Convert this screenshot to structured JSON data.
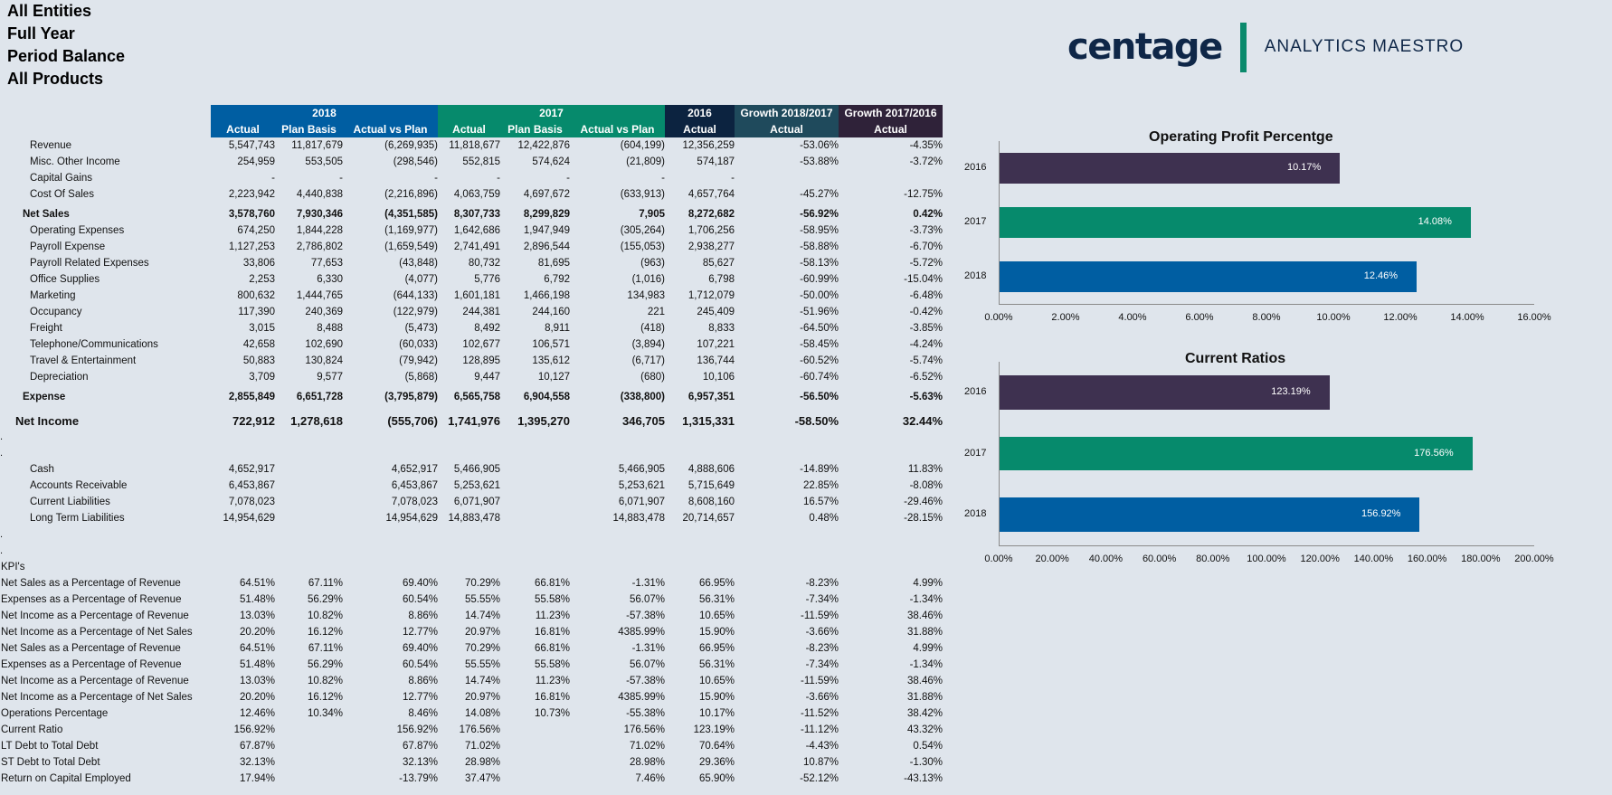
{
  "filters": [
    "All Entities",
    "Full Year",
    "Period Balance",
    "All Products"
  ],
  "brand": {
    "name": "centage",
    "tagline": "ANALYTICS MAESTRO",
    "colors": {
      "navy": "#0f2748",
      "green": "#0a8a6c"
    }
  },
  "table": {
    "groups": [
      {
        "label": "2018",
        "color": "#005ea2"
      },
      {
        "label": "2017",
        "color": "#068a6c"
      },
      {
        "label": "2016",
        "color": "#0c2340"
      },
      {
        "label": "Growth 2018/2017",
        "color": "#1f4a5c"
      },
      {
        "label": "Growth 2017/2016",
        "color": "#2f2239"
      }
    ],
    "columns": [
      "Actual",
      "Plan Basis",
      "Actual vs Plan",
      "Actual",
      "Plan Basis",
      "Actual vs Plan",
      "Actual",
      "Actual",
      "Actual"
    ],
    "income_rows": [
      {
        "label": "Revenue",
        "style": "item",
        "values": [
          "5,547,743",
          "11,817,679",
          "(6,269,935)",
          "11,818,677",
          "12,422,876",
          "(604,199)",
          "12,356,259",
          "-53.06%",
          "-4.35%"
        ]
      },
      {
        "label": "Misc. Other Income",
        "style": "item",
        "values": [
          "254,959",
          "553,505",
          "(298,546)",
          "552,815",
          "574,624",
          "(21,809)",
          "574,187",
          "-53.88%",
          "-3.72%"
        ]
      },
      {
        "label": "Capital Gains",
        "style": "item",
        "values": [
          "-",
          "-",
          "-",
          "-",
          "-",
          "-",
          "-",
          "",
          ""
        ]
      },
      {
        "label": "Cost Of Sales",
        "style": "item",
        "values": [
          "2,223,942",
          "4,440,838",
          "(2,216,896)",
          "4,063,759",
          "4,697,672",
          "(633,913)",
          "4,657,764",
          "-45.27%",
          "-12.75%"
        ]
      },
      {
        "label": "Net Sales",
        "style": "subtotal",
        "values": [
          "3,578,760",
          "7,930,346",
          "(4,351,585)",
          "8,307,733",
          "8,299,829",
          "7,905",
          "8,272,682",
          "-56.92%",
          "0.42%"
        ]
      },
      {
        "label": "Operating Expenses",
        "style": "item",
        "values": [
          "674,250",
          "1,844,228",
          "(1,169,977)",
          "1,642,686",
          "1,947,949",
          "(305,264)",
          "1,706,256",
          "-58.95%",
          "-3.73%"
        ]
      },
      {
        "label": "Payroll Expense",
        "style": "item",
        "values": [
          "1,127,253",
          "2,786,802",
          "(1,659,549)",
          "2,741,491",
          "2,896,544",
          "(155,053)",
          "2,938,277",
          "-58.88%",
          "-6.70%"
        ]
      },
      {
        "label": "Payroll Related Expenses",
        "style": "item",
        "values": [
          "33,806",
          "77,653",
          "(43,848)",
          "80,732",
          "81,695",
          "(963)",
          "85,627",
          "-58.13%",
          "-5.72%"
        ]
      },
      {
        "label": "Office Supplies",
        "style": "item",
        "values": [
          "2,253",
          "6,330",
          "(4,077)",
          "5,776",
          "6,792",
          "(1,016)",
          "6,798",
          "-60.99%",
          "-15.04%"
        ]
      },
      {
        "label": "Marketing",
        "style": "item",
        "values": [
          "800,632",
          "1,444,765",
          "(644,133)",
          "1,601,181",
          "1,466,198",
          "134,983",
          "1,712,079",
          "-50.00%",
          "-6.48%"
        ]
      },
      {
        "label": "Occupancy",
        "style": "item",
        "values": [
          "117,390",
          "240,369",
          "(122,979)",
          "244,381",
          "244,160",
          "221",
          "245,409",
          "-51.96%",
          "-0.42%"
        ]
      },
      {
        "label": "Freight",
        "style": "item",
        "values": [
          "3,015",
          "8,488",
          "(5,473)",
          "8,492",
          "8,911",
          "(418)",
          "8,833",
          "-64.50%",
          "-3.85%"
        ]
      },
      {
        "label": "Telephone/Communications",
        "style": "item",
        "values": [
          "42,658",
          "102,690",
          "(60,033)",
          "102,677",
          "106,571",
          "(3,894)",
          "107,221",
          "-58.45%",
          "-4.24%"
        ]
      },
      {
        "label": "Travel & Entertainment",
        "style": "item",
        "values": [
          "50,883",
          "130,824",
          "(79,942)",
          "128,895",
          "135,612",
          "(6,717)",
          "136,744",
          "-60.52%",
          "-5.74%"
        ]
      },
      {
        "label": "Depreciation",
        "style": "item",
        "values": [
          "3,709",
          "9,577",
          "(5,868)",
          "9,447",
          "10,127",
          "(680)",
          "10,106",
          "-60.74%",
          "-6.52%"
        ]
      },
      {
        "label": "Expense",
        "style": "subtotal",
        "values": [
          "2,855,849",
          "6,651,728",
          "(3,795,879)",
          "6,565,758",
          "6,904,558",
          "(338,800)",
          "6,957,351",
          "-56.50%",
          "-5.63%"
        ]
      },
      {
        "label": "Net Income",
        "style": "total",
        "values": [
          "722,912",
          "1,278,618",
          "(555,706)",
          "1,741,976",
          "1,395,270",
          "346,705",
          "1,315,331",
          "-58.50%",
          "32.44%"
        ]
      }
    ],
    "spacer_mark": ".",
    "balance_rows": [
      {
        "label": "Cash",
        "values": [
          "4,652,917",
          "",
          "4,652,917",
          "5,466,905",
          "",
          "5,466,905",
          "4,888,606",
          "-14.89%",
          "11.83%"
        ]
      },
      {
        "label": "Accounts Receivable",
        "values": [
          "6,453,867",
          "",
          "6,453,867",
          "5,253,621",
          "",
          "5,253,621",
          "5,715,649",
          "22.85%",
          "-8.08%"
        ]
      },
      {
        "label": "Current Liabilities",
        "values": [
          "7,078,023",
          "",
          "7,078,023",
          "6,071,907",
          "",
          "6,071,907",
          "8,608,160",
          "16.57%",
          "-29.46%"
        ]
      },
      {
        "label": "Long Term Liabilities",
        "values": [
          "14,954,629",
          "",
          "14,954,629",
          "14,883,478",
          "",
          "14,883,478",
          "20,714,657",
          "0.48%",
          "-28.15%"
        ]
      }
    ],
    "kpi_heading": "KPI's",
    "kpi_rows": [
      {
        "label": "Net Sales as a Percentage of Revenue",
        "values": [
          "64.51%",
          "67.11%",
          "69.40%",
          "70.29%",
          "66.81%",
          "-1.31%",
          "66.95%",
          "-8.23%",
          "4.99%"
        ]
      },
      {
        "label": "Expenses as a Percentage of Revenue",
        "values": [
          "51.48%",
          "56.29%",
          "60.54%",
          "55.55%",
          "55.58%",
          "56.07%",
          "56.31%",
          "-7.34%",
          "-1.34%"
        ]
      },
      {
        "label": "Net Income as a Percentage of Revenue",
        "values": [
          "13.03%",
          "10.82%",
          "8.86%",
          "14.74%",
          "11.23%",
          "-57.38%",
          "10.65%",
          "-11.59%",
          "38.46%"
        ]
      },
      {
        "label": "Net Income as a Percentage of Net Sales",
        "values": [
          "20.20%",
          "16.12%",
          "12.77%",
          "20.97%",
          "16.81%",
          "4385.99%",
          "15.90%",
          "-3.66%",
          "31.88%"
        ]
      },
      {
        "label": "Net Sales as a Percentage of Revenue",
        "values": [
          "64.51%",
          "67.11%",
          "69.40%",
          "70.29%",
          "66.81%",
          "-1.31%",
          "66.95%",
          "-8.23%",
          "4.99%"
        ]
      },
      {
        "label": "Expenses as a Percentage of Revenue",
        "values": [
          "51.48%",
          "56.29%",
          "60.54%",
          "55.55%",
          "55.58%",
          "56.07%",
          "56.31%",
          "-7.34%",
          "-1.34%"
        ]
      },
      {
        "label": "Net Income as a Percentage of Revenue",
        "values": [
          "13.03%",
          "10.82%",
          "8.86%",
          "14.74%",
          "11.23%",
          "-57.38%",
          "10.65%",
          "-11.59%",
          "38.46%"
        ]
      },
      {
        "label": "Net Income as a Percentage of Net Sales",
        "values": [
          "20.20%",
          "16.12%",
          "12.77%",
          "20.97%",
          "16.81%",
          "4385.99%",
          "15.90%",
          "-3.66%",
          "31.88%"
        ]
      },
      {
        "label": "Operations Percentage",
        "values": [
          "12.46%",
          "10.34%",
          "8.46%",
          "14.08%",
          "10.73%",
          "-55.38%",
          "10.17%",
          "-11.52%",
          "38.42%"
        ]
      },
      {
        "label": "Current Ratio",
        "values": [
          "156.92%",
          "",
          "156.92%",
          "176.56%",
          "",
          "176.56%",
          "123.19%",
          "-11.12%",
          "43.32%"
        ]
      },
      {
        "label": "LT Debt to Total Debt",
        "values": [
          "67.87%",
          "",
          "67.87%",
          "71.02%",
          "",
          "71.02%",
          "70.64%",
          "-4.43%",
          "0.54%"
        ]
      },
      {
        "label": "ST Debt to Total Debt",
        "values": [
          "32.13%",
          "",
          "32.13%",
          "28.98%",
          "",
          "28.98%",
          "29.36%",
          "10.87%",
          "-1.30%"
        ]
      },
      {
        "label": "Return on Capital Employed",
        "values": [
          "17.94%",
          "",
          "-13.79%",
          "37.47%",
          "",
          "7.46%",
          "65.90%",
          "-52.12%",
          "-43.13%"
        ]
      }
    ]
  },
  "chart_data": [
    {
      "type": "bar",
      "orientation": "horizontal",
      "title": "Operating Profit Percentge",
      "categories": [
        "2016",
        "2017",
        "2018"
      ],
      "values": [
        10.17,
        14.08,
        12.46
      ],
      "value_labels": [
        "10.17%",
        "14.08%",
        "12.46%"
      ],
      "colors": [
        "#3e3150",
        "#068a6c",
        "#005ea2"
      ],
      "xlim": [
        0,
        16
      ],
      "xticks": [
        0,
        2,
        4,
        6,
        8,
        10,
        12,
        14,
        16
      ],
      "xtick_labels": [
        "0.00%",
        "2.00%",
        "4.00%",
        "6.00%",
        "8.00%",
        "10.00%",
        "12.00%",
        "14.00%",
        "16.00%"
      ],
      "xlabel": "",
      "ylabel": "",
      "grid": false,
      "legend": "none"
    },
    {
      "type": "bar",
      "orientation": "horizontal",
      "title": "Current Ratios",
      "categories": [
        "2016",
        "2017",
        "2018"
      ],
      "values": [
        123.19,
        176.56,
        156.92
      ],
      "value_labels": [
        "123.19%",
        "176.56%",
        "156.92%"
      ],
      "colors": [
        "#3e3150",
        "#068a6c",
        "#005ea2"
      ],
      "xlim": [
        0,
        200
      ],
      "xticks": [
        0,
        20,
        40,
        60,
        80,
        100,
        120,
        140,
        160,
        180,
        200
      ],
      "xtick_labels": [
        "0.00%",
        "20.00%",
        "40.00%",
        "60.00%",
        "80.00%",
        "100.00%",
        "120.00%",
        "140.00%",
        "160.00%",
        "180.00%",
        "200.00%"
      ],
      "xlabel": "",
      "ylabel": "",
      "grid": false,
      "legend": "none"
    }
  ]
}
